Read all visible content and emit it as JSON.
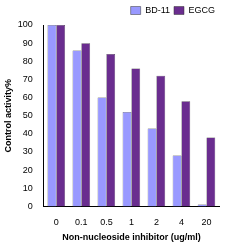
{
  "chart_data": {
    "type": "bar",
    "categories": [
      "0",
      "0.1",
      "0.5",
      "1",
      "2",
      "4",
      "20"
    ],
    "series": [
      {
        "name": "BD-11",
        "color": "#9999ff",
        "values": [
          100,
          86,
          60,
          52,
          43,
          28,
          1
        ]
      },
      {
        "name": "EGCG",
        "color": "#6a2d8f",
        "values": [
          100,
          90,
          84,
          76,
          72,
          58,
          38
        ]
      }
    ],
    "x_label": "Non-nucleoside inhibitor (ug/ml)",
    "y_label": "Control activity%",
    "ylim": [
      0,
      100
    ],
    "yticks": [
      0,
      10,
      20,
      30,
      40,
      50,
      60,
      70,
      80,
      90,
      100
    ],
    "grid": false,
    "legend": "upper right"
  }
}
